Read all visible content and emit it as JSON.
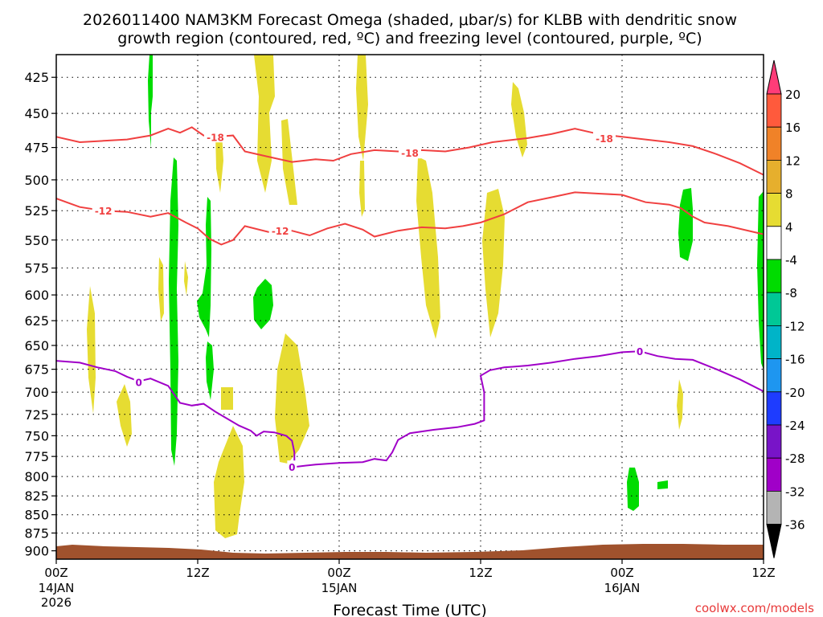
{
  "chart_data": {
    "type": "heatmap",
    "title_line1": "2026011400 NAM3KM Forecast Omega (shaded, μbar/s) for KLBB with dendritic snow",
    "title_line2": "growth region (contoured, red, ºC) and freezing level (contoured, purple, ºC)",
    "xlabel": "Forecast Time (UTC)",
    "credit": "coolwx.com/models",
    "xlim": [
      0,
      60
    ],
    "ylim": [
      912,
      410
    ],
    "x_ticks": [
      {
        "x": 0,
        "label": "00Z",
        "sub1": "14JAN",
        "sub2": "2026"
      },
      {
        "x": 12,
        "label": "12Z",
        "sub1": "",
        "sub2": ""
      },
      {
        "x": 24,
        "label": "00Z",
        "sub1": "15JAN",
        "sub2": ""
      },
      {
        "x": 36,
        "label": "12Z",
        "sub1": "",
        "sub2": ""
      },
      {
        "x": 48,
        "label": "00Z",
        "sub1": "16JAN",
        "sub2": ""
      },
      {
        "x": 60,
        "label": "12Z",
        "sub1": "",
        "sub2": ""
      }
    ],
    "y_ticks": [
      "425",
      "450",
      "475",
      "500",
      "525",
      "550",
      "575",
      "600",
      "625",
      "650",
      "675",
      "700",
      "725",
      "750",
      "775",
      "800",
      "825",
      "850",
      "875",
      "900"
    ],
    "colorbar": {
      "labels": [
        "20",
        "16",
        "12",
        "8",
        "4",
        "-4",
        "-8",
        "-12",
        "-16",
        "-20",
        "-24",
        "-28",
        "-32",
        "-36"
      ],
      "colors": [
        "#ff3c78",
        "#ff5a3c",
        "#f08228",
        "#e6af2d",
        "#e6dc32",
        "#ffffff",
        "#00dc00",
        "#00c896",
        "#00b4c8",
        "#1e96f0",
        "#1e3cff",
        "#7814c8",
        "#a000c8",
        "#b4b4b4",
        "#000000"
      ]
    },
    "contours": [
      {
        "name": "-18C",
        "color": "#f04040",
        "label": "-18",
        "label_at": [
          [
            13.5,
            467
          ],
          [
            30,
            479
          ],
          [
            46.5,
            468
          ]
        ],
        "points": [
          [
            0,
            467
          ],
          [
            2,
            471
          ],
          [
            4,
            470
          ],
          [
            6,
            469
          ],
          [
            8,
            466
          ],
          [
            9.5,
            461
          ],
          [
            10.5,
            464
          ],
          [
            11.5,
            460
          ],
          [
            12.5,
            466
          ],
          [
            13.5,
            467
          ],
          [
            15,
            466
          ],
          [
            16,
            478
          ],
          [
            18,
            482
          ],
          [
            20,
            486
          ],
          [
            22,
            484
          ],
          [
            23.5,
            485
          ],
          [
            25,
            480
          ],
          [
            27,
            477
          ],
          [
            29,
            478
          ],
          [
            31,
            477
          ],
          [
            33,
            478
          ],
          [
            35,
            475
          ],
          [
            37,
            471
          ],
          [
            40,
            468
          ],
          [
            42,
            465
          ],
          [
            44,
            461
          ],
          [
            45.5,
            464
          ],
          [
            47,
            466
          ],
          [
            50,
            469
          ],
          [
            52,
            471
          ],
          [
            54,
            474
          ],
          [
            56,
            480
          ],
          [
            58,
            487
          ],
          [
            60,
            496
          ]
        ]
      },
      {
        "name": "-12C",
        "color": "#f04040",
        "label": "-12",
        "label_at": [
          [
            4,
            525
          ],
          [
            19,
            542
          ]
        ],
        "points": [
          [
            0,
            515
          ],
          [
            2,
            522
          ],
          [
            4,
            525
          ],
          [
            6,
            526
          ],
          [
            8,
            530
          ],
          [
            9.5,
            527
          ],
          [
            11,
            535
          ],
          [
            12,
            540
          ],
          [
            13,
            549
          ],
          [
            14,
            554
          ],
          [
            15,
            550
          ],
          [
            16,
            538
          ],
          [
            18,
            543
          ],
          [
            20,
            542
          ],
          [
            21.5,
            546
          ],
          [
            23,
            540
          ],
          [
            24.5,
            536
          ],
          [
            26,
            541
          ],
          [
            27,
            547
          ],
          [
            29,
            542
          ],
          [
            31,
            539
          ],
          [
            33,
            540
          ],
          [
            34.5,
            538
          ],
          [
            36,
            535
          ],
          [
            38,
            528
          ],
          [
            40,
            518
          ],
          [
            42,
            514
          ],
          [
            44,
            510
          ],
          [
            46,
            511
          ],
          [
            48,
            512
          ],
          [
            50,
            518
          ],
          [
            52,
            520
          ],
          [
            53,
            523
          ],
          [
            54,
            530
          ],
          [
            55,
            535
          ],
          [
            57,
            538
          ],
          [
            60,
            545
          ]
        ]
      },
      {
        "name": "0C",
        "color": "#a000c8",
        "label": "0",
        "label_at": [
          [
            7,
            689
          ],
          [
            20,
            788
          ],
          [
            49.5,
            656
          ]
        ],
        "points": [
          [
            0,
            666
          ],
          [
            2,
            668
          ],
          [
            3.5,
            673
          ],
          [
            5,
            677
          ],
          [
            6,
            683
          ],
          [
            7,
            688
          ],
          [
            8,
            685
          ],
          [
            9.5,
            693
          ],
          [
            10.5,
            712
          ],
          [
            11.5,
            715
          ],
          [
            12.5,
            713
          ],
          [
            13.5,
            722
          ],
          [
            14.5,
            730
          ],
          [
            15.5,
            738
          ],
          [
            16.5,
            744
          ],
          [
            17,
            750
          ],
          [
            17.6,
            745
          ],
          [
            18.5,
            746
          ],
          [
            19.5,
            750
          ],
          [
            20,
            756
          ],
          [
            20.2,
            770
          ],
          [
            20.2,
            788
          ],
          [
            22,
            785
          ],
          [
            24,
            783
          ],
          [
            26,
            782
          ],
          [
            27,
            778
          ],
          [
            28,
            780
          ],
          [
            28.5,
            770
          ],
          [
            29,
            755
          ],
          [
            30,
            747
          ],
          [
            32,
            743
          ],
          [
            34,
            740
          ],
          [
            35.5,
            736
          ],
          [
            36.3,
            732
          ],
          [
            36.3,
            700
          ],
          [
            36,
            682
          ],
          [
            36.8,
            676
          ],
          [
            38,
            673
          ],
          [
            40,
            671
          ],
          [
            42,
            668
          ],
          [
            44,
            664
          ],
          [
            46,
            661
          ],
          [
            48,
            657
          ],
          [
            49.5,
            656
          ],
          [
            51,
            661
          ],
          [
            52.5,
            664
          ],
          [
            54,
            665
          ],
          [
            56,
            675
          ],
          [
            58,
            686
          ],
          [
            60,
            699
          ]
        ]
      }
    ]
  }
}
